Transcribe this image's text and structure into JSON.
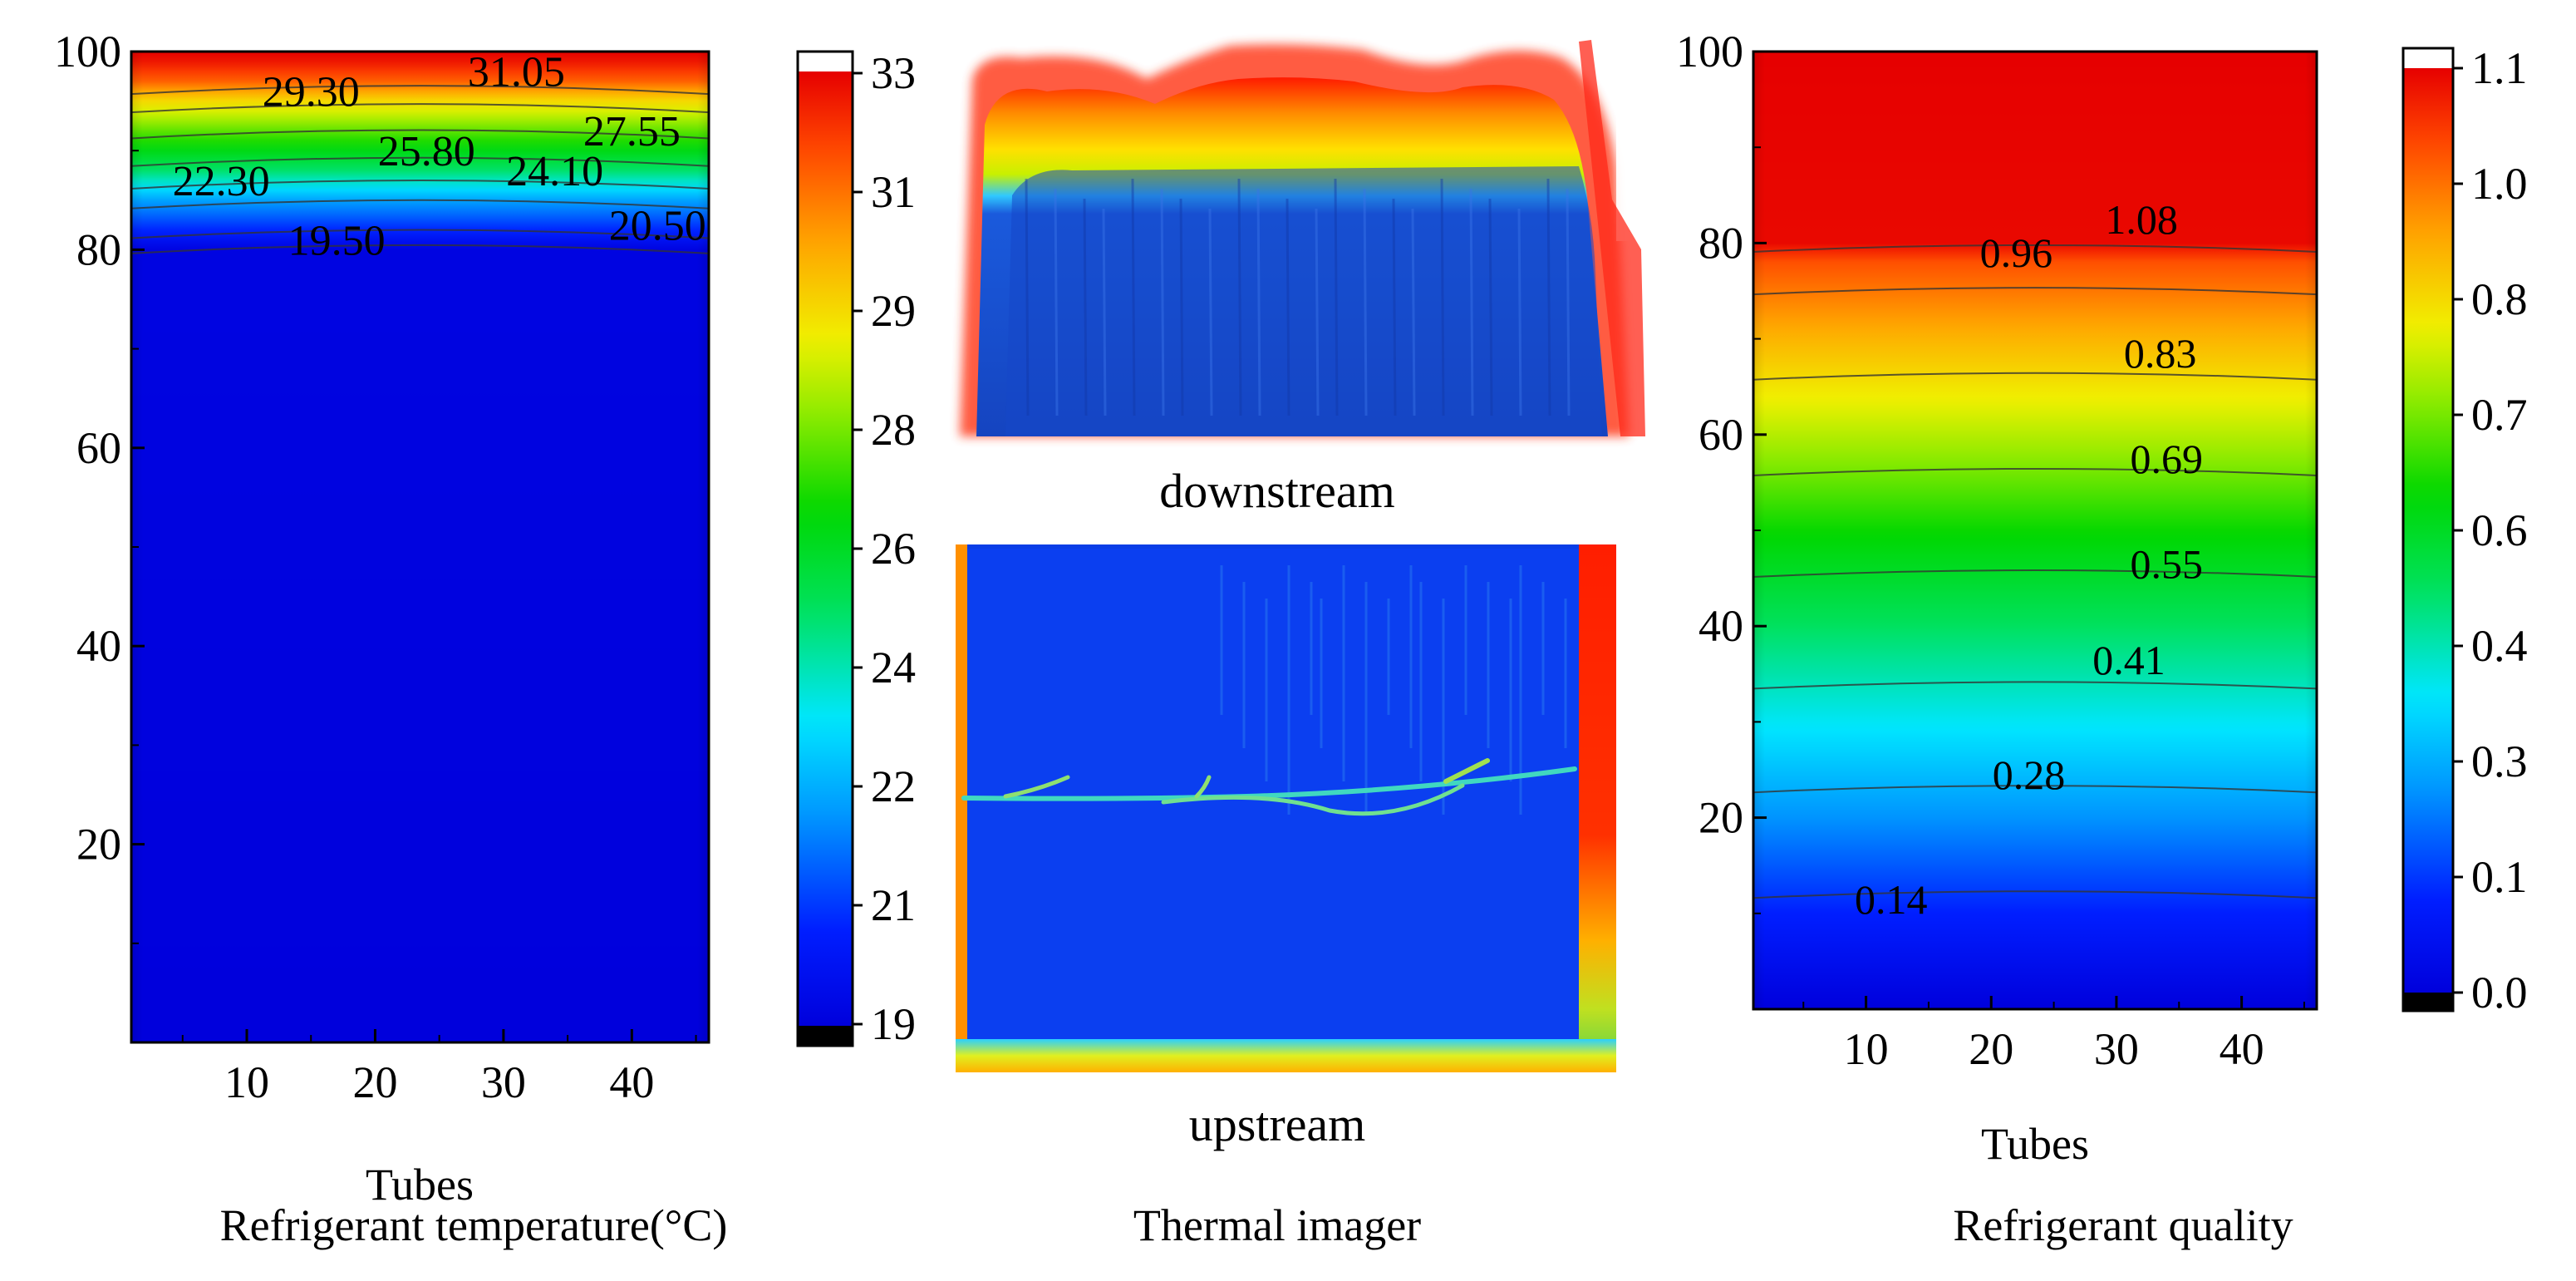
{
  "chart_data": [
    {
      "type": "contour",
      "title": "Refrigerant temperature(°C)",
      "xlabel": "Tubes",
      "ylabel": "",
      "xlim": [
        1,
        46
      ],
      "ylim": [
        0,
        100
      ],
      "x_ticks": [
        10,
        20,
        30,
        40
      ],
      "y_ticks": [
        20,
        40,
        60,
        80,
        100
      ],
      "profile": [
        {
          "y": 0,
          "value": 19.0
        },
        {
          "y": 80,
          "value": 19.2
        },
        {
          "y": 82,
          "value": 20.5
        },
        {
          "y": 85,
          "value": 22.3
        },
        {
          "y": 88,
          "value": 25.0
        },
        {
          "y": 92,
          "value": 27.5
        },
        {
          "y": 95,
          "value": 29.5
        },
        {
          "y": 97,
          "value": 31.5
        },
        {
          "y": 100,
          "value": 33.2
        }
      ],
      "contour_labels": [
        {
          "text": "29.30",
          "x": 15,
          "y": 94.5
        },
        {
          "text": "31.05",
          "x": 31,
          "y": 96.5
        },
        {
          "text": "27.55",
          "x": 40,
          "y": 90.5
        },
        {
          "text": "25.80",
          "x": 24,
          "y": 88.5
        },
        {
          "text": "24.10",
          "x": 34,
          "y": 86.5
        },
        {
          "text": "22.30",
          "x": 8,
          "y": 85.5
        },
        {
          "text": "19.50",
          "x": 17,
          "y": 79.5
        },
        {
          "text": "20.50",
          "x": 42,
          "y": 81
        }
      ],
      "colorbar": {
        "min": 19,
        "max": 33,
        "ticks": [
          "19",
          "21",
          "22",
          "24",
          "26",
          "28",
          "29",
          "31",
          "33"
        ]
      }
    },
    {
      "type": "image",
      "title": "Thermal imager",
      "panels": [
        "downstream",
        "upstream"
      ]
    },
    {
      "type": "contour",
      "title": "Refrigerant quality",
      "xlabel": "Tubes",
      "ylabel": "",
      "xlim": [
        1,
        46
      ],
      "ylim": [
        0,
        100
      ],
      "x_ticks": [
        10,
        20,
        30,
        40
      ],
      "y_ticks": [
        20,
        40,
        60,
        80,
        100
      ],
      "profile": [
        {
          "y": 0,
          "value": 0.0
        },
        {
          "y": 10,
          "value": 0.11
        },
        {
          "y": 20,
          "value": 0.24
        },
        {
          "y": 30,
          "value": 0.36
        },
        {
          "y": 40,
          "value": 0.48
        },
        {
          "y": 50,
          "value": 0.6
        },
        {
          "y": 60,
          "value": 0.74
        },
        {
          "y": 70,
          "value": 0.88
        },
        {
          "y": 78,
          "value": 1.0
        },
        {
          "y": 80,
          "value": 1.09
        },
        {
          "y": 100,
          "value": 1.1
        }
      ],
      "contour_labels": [
        {
          "text": "1.08",
          "x": 32,
          "y": 81
        },
        {
          "text": "0.96",
          "x": 22,
          "y": 77.5
        },
        {
          "text": "0.83",
          "x": 33.5,
          "y": 67
        },
        {
          "text": "0.69",
          "x": 34,
          "y": 56
        },
        {
          "text": "0.55",
          "x": 34,
          "y": 45
        },
        {
          "text": "0.41",
          "x": 31,
          "y": 35
        },
        {
          "text": "0.28",
          "x": 23,
          "y": 23
        },
        {
          "text": "0.14",
          "x": 12,
          "y": 10
        }
      ],
      "colorbar": {
        "min": 0,
        "max": 1.1,
        "ticks": [
          "0.0",
          "0.1",
          "0.3",
          "0.4",
          "0.6",
          "0.7",
          "0.8",
          "1.0",
          "1.1"
        ]
      }
    }
  ]
}
